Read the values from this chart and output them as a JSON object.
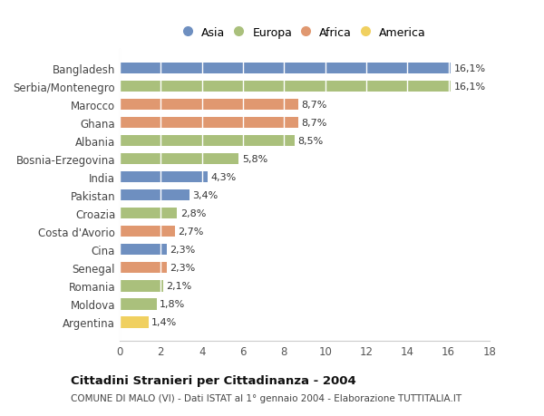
{
  "categories": [
    "Bangladesh",
    "Serbia/Montenegro",
    "Marocco",
    "Ghana",
    "Albania",
    "Bosnia-Erzegovina",
    "India",
    "Pakistan",
    "Croazia",
    "Costa d'Avorio",
    "Cina",
    "Senegal",
    "Romania",
    "Moldova",
    "Argentina"
  ],
  "values": [
    16.1,
    16.1,
    8.7,
    8.7,
    8.5,
    5.8,
    4.3,
    3.4,
    2.8,
    2.7,
    2.3,
    2.3,
    2.1,
    1.8,
    1.4
  ],
  "labels": [
    "16,1%",
    "16,1%",
    "8,7%",
    "8,7%",
    "8,5%",
    "5,8%",
    "4,3%",
    "3,4%",
    "2,8%",
    "2,7%",
    "2,3%",
    "2,3%",
    "2,1%",
    "1,8%",
    "1,4%"
  ],
  "colors": [
    "#6e8fc0",
    "#aac07c",
    "#e09870",
    "#e09870",
    "#aac07c",
    "#aac07c",
    "#6e8fc0",
    "#6e8fc0",
    "#aac07c",
    "#e09870",
    "#6e8fc0",
    "#e09870",
    "#aac07c",
    "#aac07c",
    "#f0d060"
  ],
  "legend_labels": [
    "Asia",
    "Europa",
    "Africa",
    "America"
  ],
  "legend_colors": [
    "#6e8fc0",
    "#aac07c",
    "#e09870",
    "#f0d060"
  ],
  "title": "Cittadini Stranieri per Cittadinanza - 2004",
  "subtitle": "COMUNE DI MALO (VI) - Dati ISTAT al 1° gennaio 2004 - Elaborazione TUTTITALIA.IT",
  "xlim": [
    0,
    18
  ],
  "xticks": [
    0,
    2,
    4,
    6,
    8,
    10,
    12,
    14,
    16,
    18
  ],
  "background_color": "#ffffff",
  "plot_bg_color": "#ffffff",
  "grid_color": "#ffffff",
  "bar_height": 0.62,
  "label_fontsize": 8.0,
  "ytick_fontsize": 8.5,
  "xtick_fontsize": 8.5
}
